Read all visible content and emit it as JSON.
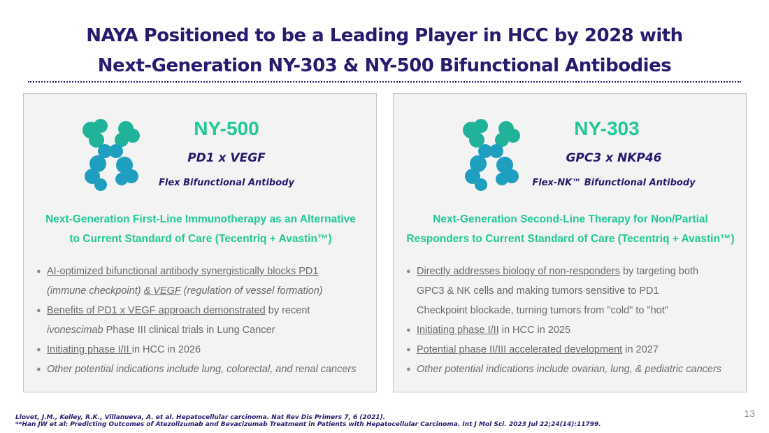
{
  "title": {
    "line1": "NAYA Positioned to be a Leading Player in HCC by 2028 with",
    "line2": "Next-Generation NY-303 & NY-500 Bifunctional Antibodies"
  },
  "cards": [
    {
      "product": "NY-500",
      "target": "PD1 x VEGF",
      "antibody_type": "Flex Bifunctional Antibody",
      "headline1": "Next-Generation First-Line Immunotherapy as an Alternative",
      "headline2": "to Current Standard of Care (Tecentriq + Avastin™)",
      "bullets": [
        {
          "a": "AI-optimized bifunctional antibody synergistically blocks PD1",
          "b": "(immune checkpoint) ",
          "c": "& VEGF",
          "d": " (regulation of vessel formation)"
        },
        {
          "a": "Benefits of PD1 x VEGF approach demonstrated",
          "b": " by recent",
          "c": "ivonescimab",
          "d": " Phase III clinical trials in Lung Cancer"
        },
        {
          "a": "Initiating phase I/II ",
          "b": "in HCC in 2026"
        },
        {
          "a": "Other potential indications include lung, colorectal, and renal cancers"
        }
      ]
    },
    {
      "product": "NY-303",
      "target": "GPC3 x NKP46",
      "antibody_type": "Flex-NK™ Bifunctional Antibody",
      "headline1": "Next-Generation Second-Line Therapy for Non/Partial",
      "headline2": "Responders to Current Standard of Care (Tecentriq + Avastin™)",
      "bullets": [
        {
          "a": "Directly addresses biology of non-responders",
          "b": " by targeting both",
          "c": "GPC3 & NK cells and making tumors sensitive to PD1",
          "d": "Checkpoint blockade, turning tumors from \"cold\" to \"hot\""
        },
        {
          "a": "Initiating phase I/II",
          "b": " in HCC in 2025"
        },
        {
          "a": "Potential phase II/III accelerated development",
          "b": " in 2027"
        },
        {
          "a": "Other potential indications include ovarian, lung, & pediatric cancers"
        }
      ]
    }
  ],
  "footnotes": [
    "Llovet, J.M., Kelley, R.K., Villanueva, A. et al. Hepatocellular carcinoma. Nat Rev Dis Primers 7, 6 (2021).",
    "**Han JW et al: Predicting Outcomes of Atezolizumab and Bevacizumab Treatment in Patients with Hepatocellular Carcinoma. Int J Mol Sci. 2023 Jul 22;24(14):11799."
  ],
  "page_number": "13",
  "colors": {
    "title": "#2a1a6e",
    "accent": "#20c997",
    "card_bg": "#f3f3f3"
  },
  "icons": [
    "antibody-molecule-icon"
  ]
}
